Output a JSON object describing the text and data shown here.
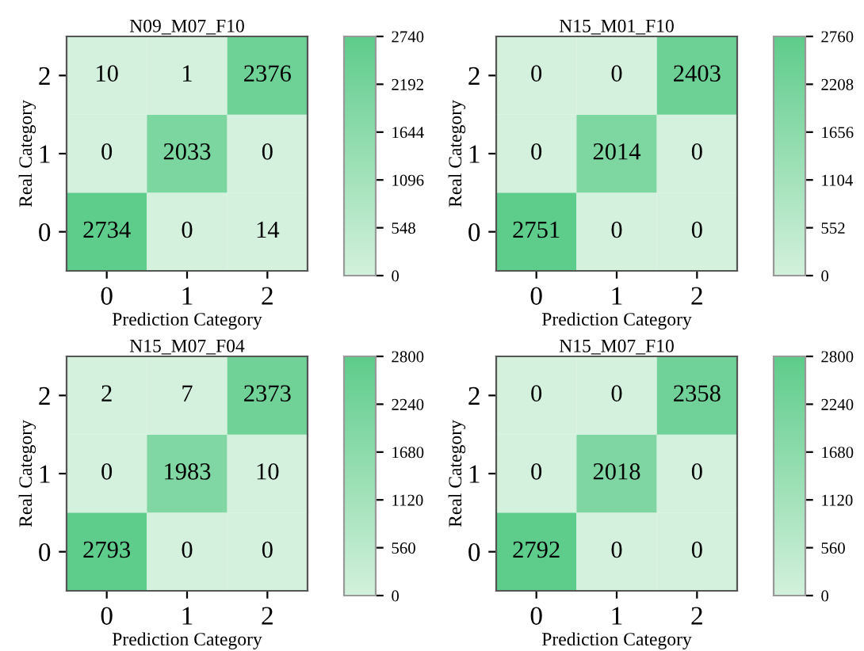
{
  "chart_data": [
    {
      "type": "heatmap",
      "title": "N09_M07_F10",
      "xlabel": "Prediction Category",
      "ylabel": "Real Category",
      "categories": [
        "0",
        "1",
        "2"
      ],
      "y_categories": [
        "2",
        "1",
        "0"
      ],
      "cells": [
        [
          10,
          1,
          2376
        ],
        [
          0,
          2033,
          0
        ],
        [
          2734,
          0,
          14
        ]
      ],
      "data_labels": true,
      "clim": [
        0,
        2740
      ],
      "cticks": [
        0,
        548,
        1096,
        1644,
        2192,
        2740
      ],
      "colors": [
        "#d3f1dc",
        "#5ecc8b"
      ]
    },
    {
      "type": "heatmap",
      "title": "N15_M01_F10",
      "xlabel": "Prediction Category",
      "ylabel": "Real Category",
      "categories": [
        "0",
        "1",
        "2"
      ],
      "y_categories": [
        "2",
        "1",
        "0"
      ],
      "cells": [
        [
          0,
          0,
          2403
        ],
        [
          0,
          2014,
          0
        ],
        [
          2751,
          0,
          0
        ]
      ],
      "data_labels": true,
      "clim": [
        0,
        2760
      ],
      "cticks": [
        0,
        552,
        1104,
        1656,
        2208,
        2760
      ],
      "colors": [
        "#d3f1dc",
        "#5ecc8b"
      ]
    },
    {
      "type": "heatmap",
      "title": "N15_M07_F04",
      "xlabel": "Prediction Category",
      "ylabel": "Real Category",
      "categories": [
        "0",
        "1",
        "2"
      ],
      "y_categories": [
        "2",
        "1",
        "0"
      ],
      "cells": [
        [
          2,
          7,
          2373
        ],
        [
          0,
          1983,
          10
        ],
        [
          2793,
          0,
          0
        ]
      ],
      "data_labels": true,
      "clim": [
        0,
        2800
      ],
      "cticks": [
        0,
        560,
        1120,
        1680,
        2240,
        2800
      ],
      "colors": [
        "#d3f1dc",
        "#5ecc8b"
      ]
    },
    {
      "type": "heatmap",
      "title": "N15_M07_F10",
      "xlabel": "Prediction Category",
      "ylabel": "Real Category",
      "categories": [
        "0",
        "1",
        "2"
      ],
      "y_categories": [
        "2",
        "1",
        "0"
      ],
      "cells": [
        [
          0,
          0,
          2358
        ],
        [
          0,
          2018,
          0
        ],
        [
          2792,
          0,
          0
        ]
      ],
      "data_labels": true,
      "clim": [
        0,
        2800
      ],
      "cticks": [
        0,
        560,
        1120,
        1680,
        2240,
        2800
      ],
      "colors": [
        "#d3f1dc",
        "#5ecc8b"
      ]
    }
  ]
}
